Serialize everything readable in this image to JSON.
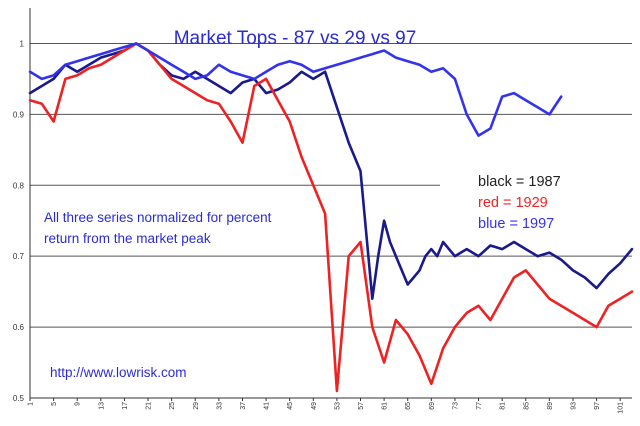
{
  "chart_data": {
    "type": "line",
    "title": "Market Tops - 87 vs 29 vs 97",
    "xlabel": "",
    "ylabel": "",
    "ylim": [
      0.5,
      1.05
    ],
    "xlim": [
      1,
      103
    ],
    "y_ticks": [
      "1",
      "0.9",
      "0.8",
      "0.7",
      "0.6",
      "0.5"
    ],
    "y_tick_values": [
      1,
      0.9,
      0.8,
      0.7,
      0.6,
      0.5
    ],
    "x_ticks": [
      "1",
      "5",
      "9",
      "13",
      "17",
      "21",
      "25",
      "29",
      "33",
      "37",
      "41",
      "45",
      "49",
      "53",
      "57",
      "61",
      "65",
      "69",
      "73",
      "77",
      "81",
      "85",
      "89",
      "93",
      "97",
      "101"
    ],
    "x_tick_values": [
      1,
      5,
      9,
      13,
      17,
      21,
      25,
      29,
      33,
      37,
      41,
      45,
      49,
      53,
      57,
      61,
      65,
      69,
      73,
      77,
      81,
      85,
      89,
      93,
      97,
      101
    ],
    "grid_y": [
      1,
      0.9,
      0.7,
      0.6
    ],
    "annotation": "All three series normalized for percent return from the market peak",
    "annotation_lines": [
      "All three series normalized for percent",
      "return from the market peak"
    ],
    "source": "http://www.lowrisk.com",
    "legend": [
      {
        "label": "black = 1987",
        "color": "#222222"
      },
      {
        "label": "red = 1929",
        "color": "#ee2222"
      },
      {
        "label": "blue = 1997",
        "color": "#3333ee"
      }
    ],
    "series": [
      {
        "color": "#1a1a8c",
        "x": [
          1,
          3,
          5,
          7,
          9,
          11,
          13,
          15,
          17,
          19,
          21,
          23,
          25,
          27,
          29,
          31,
          33,
          35,
          37,
          39,
          41,
          43,
          45,
          47,
          49,
          51,
          53,
          55,
          57,
          59,
          60,
          61,
          62,
          63,
          64,
          65,
          66,
          67,
          68,
          69,
          70,
          71,
          73,
          75,
          77,
          79,
          81,
          83,
          85,
          87,
          89,
          91,
          93,
          95,
          97,
          99,
          101,
          103
        ],
        "y": [
          0.93,
          0.94,
          0.95,
          0.97,
          0.96,
          0.97,
          0.98,
          0.985,
          0.99,
          1.0,
          0.99,
          0.97,
          0.955,
          0.95,
          0.96,
          0.95,
          0.94,
          0.93,
          0.945,
          0.95,
          0.93,
          0.935,
          0.945,
          0.96,
          0.95,
          0.96,
          0.91,
          0.86,
          0.82,
          0.64,
          0.7,
          0.75,
          0.72,
          0.7,
          0.68,
          0.66,
          0.67,
          0.68,
          0.7,
          0.71,
          0.7,
          0.72,
          0.7,
          0.71,
          0.7,
          0.715,
          0.71,
          0.72,
          0.71,
          0.7,
          0.705,
          0.695,
          0.68,
          0.67,
          0.655,
          0.675,
          0.69,
          0.71
        ]
      },
      {
        "color": "#ee2222",
        "x": [
          1,
          3,
          5,
          7,
          9,
          11,
          13,
          15,
          17,
          19,
          21,
          23,
          25,
          27,
          29,
          31,
          33,
          35,
          37,
          39,
          41,
          43,
          45,
          47,
          49,
          51,
          53,
          55,
          57,
          59,
          61,
          63,
          65,
          67,
          69,
          71,
          73,
          75,
          77,
          79,
          81,
          83,
          85,
          87,
          89,
          91,
          93,
          95,
          97,
          99,
          101,
          103
        ],
        "y": [
          0.92,
          0.915,
          0.89,
          0.95,
          0.955,
          0.965,
          0.97,
          0.98,
          0.99,
          1.0,
          0.99,
          0.97,
          0.95,
          0.94,
          0.93,
          0.92,
          0.915,
          0.89,
          0.86,
          0.94,
          0.95,
          0.92,
          0.89,
          0.84,
          0.8,
          0.76,
          0.51,
          0.7,
          0.72,
          0.6,
          0.55,
          0.61,
          0.59,
          0.56,
          0.52,
          0.57,
          0.6,
          0.62,
          0.63,
          0.61,
          0.64,
          0.67,
          0.68,
          0.66,
          0.64,
          0.63,
          0.62,
          0.61,
          0.6,
          0.63,
          0.64,
          0.65
        ]
      },
      {
        "color": "#3333ee",
        "x": [
          1,
          3,
          5,
          7,
          9,
          11,
          13,
          15,
          17,
          19,
          21,
          23,
          25,
          27,
          29,
          31,
          33,
          35,
          37,
          39,
          41,
          43,
          45,
          47,
          49,
          51,
          53,
          55,
          57,
          59,
          61,
          63,
          65,
          67,
          69,
          71,
          73,
          75,
          77,
          79,
          81,
          83,
          85,
          87,
          89,
          91
        ],
        "y": [
          0.96,
          0.95,
          0.955,
          0.97,
          0.975,
          0.98,
          0.985,
          0.99,
          0.995,
          1.0,
          0.99,
          0.98,
          0.97,
          0.96,
          0.95,
          0.955,
          0.97,
          0.96,
          0.955,
          0.95,
          0.96,
          0.97,
          0.975,
          0.97,
          0.96,
          0.965,
          0.97,
          0.975,
          0.98,
          0.985,
          0.99,
          0.98,
          0.975,
          0.97,
          0.96,
          0.965,
          0.95,
          0.9,
          0.87,
          0.88,
          0.925,
          0.93,
          0.92,
          0.91,
          0.9,
          0.925
        ]
      }
    ]
  }
}
